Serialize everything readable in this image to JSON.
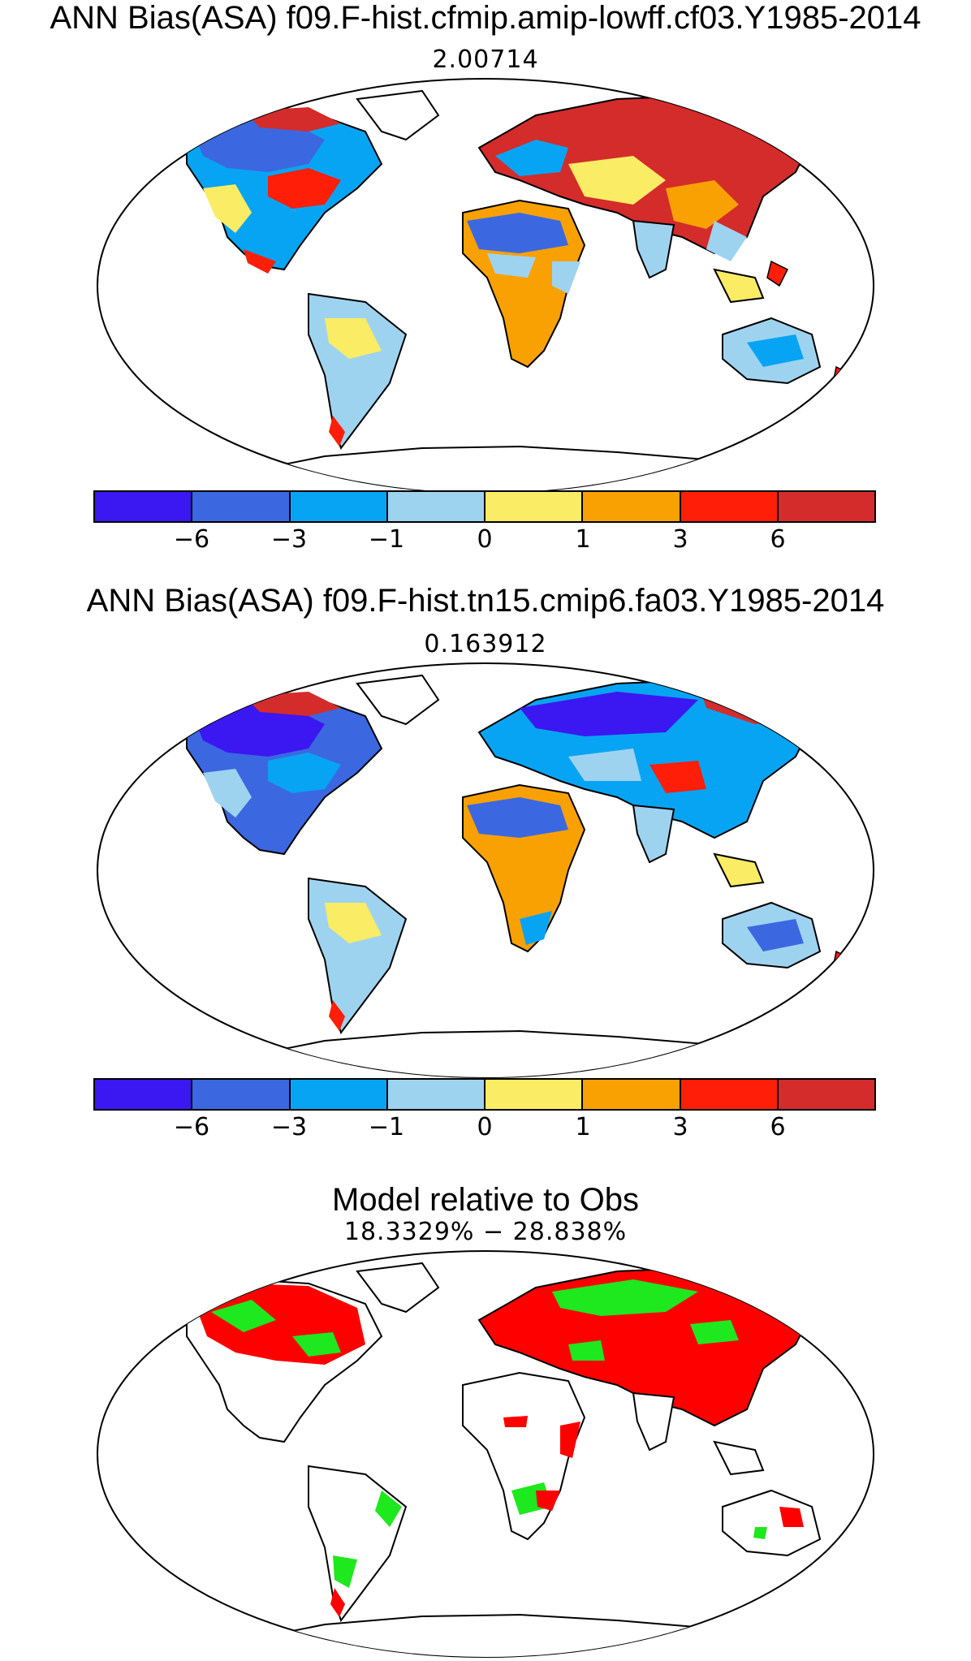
{
  "panels": [
    {
      "title": "ANN Bias(ASA) f09.F-hist.cfmip.amip-lowff.cf03.Y1985-2014",
      "subtitle": "2.00714",
      "colorbar": {
        "colors": [
          "#3b17f2",
          "#3b68e0",
          "#08a4f4",
          "#9ed3f0",
          "#fbec65",
          "#f9a103",
          "#ff1e08",
          "#d42b2b"
        ],
        "ticks": [
          "−6",
          "−3",
          "−1",
          "0",
          "1",
          "3",
          "6"
        ]
      }
    },
    {
      "title": "ANN Bias(ASA) f09.F-hist.tn15.cmip6.fa03.Y1985-2014",
      "subtitle": "0.163912",
      "colorbar": {
        "colors": [
          "#3b17f2",
          "#3b68e0",
          "#08a4f4",
          "#9ed3f0",
          "#fbec65",
          "#f9a103",
          "#ff1e08",
          "#d42b2b"
        ],
        "ticks": [
          "−6",
          "−3",
          "−1",
          "0",
          "1",
          "3",
          "6"
        ]
      }
    },
    {
      "title": "Model relative to Obs",
      "subtitle": "18.3329% − 28.838%",
      "colors": {
        "worse": "#ff0000",
        "better": "#1ee81e"
      }
    }
  ]
}
